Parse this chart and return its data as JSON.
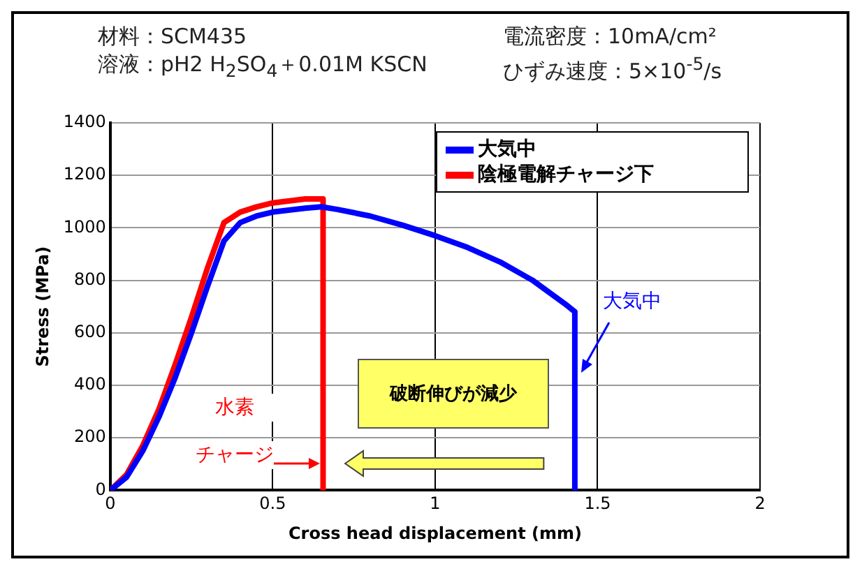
{
  "chart_data": {
    "type": "line",
    "xlabel": "Cross head displacement (mm)",
    "ylabel": "Stress (MPa)",
    "xlim": [
      0,
      2
    ],
    "xticks": [
      0,
      0.5,
      1,
      1.5,
      2
    ],
    "ylim": [
      0,
      1400
    ],
    "yticks": [
      0,
      200,
      400,
      600,
      800,
      1000,
      1200,
      1400
    ],
    "grid": true,
    "legend": "top right",
    "marker": "none",
    "line_style": "solid",
    "series": [
      {
        "name": "大気中",
        "color": "#0000ff",
        "x": [
          0,
          0.05,
          0.1,
          0.15,
          0.2,
          0.25,
          0.3,
          0.35,
          0.4,
          0.45,
          0.5,
          0.6,
          0.65,
          0.7,
          0.8,
          0.9,
          1.0,
          1.1,
          1.2,
          1.3,
          1.4,
          1.43,
          1.43
        ],
        "values": [
          0,
          50,
          150,
          280,
          430,
          600,
          780,
          950,
          1020,
          1045,
          1060,
          1075,
          1080,
          1070,
          1045,
          1010,
          970,
          925,
          870,
          800,
          710,
          680,
          0
        ]
      },
      {
        "name": "陰極電解チャージ下",
        "color": "#ff0000",
        "x": [
          0,
          0.05,
          0.1,
          0.15,
          0.2,
          0.25,
          0.3,
          0.35,
          0.4,
          0.45,
          0.5,
          0.6,
          0.655,
          0.655
        ],
        "values": [
          0,
          60,
          170,
          310,
          480,
          660,
          850,
          1020,
          1060,
          1080,
          1095,
          1110,
          1110,
          0
        ]
      }
    ],
    "annotations": [
      "材料：SCM435",
      "電流密度：10mA/cm²",
      "溶液：pH2 H$_{2}$SO$_{4}$＋0.01M KSCN",
      "ひずみ速度：5×10$^{-5}$/s",
      "破断伸びが減少",
      "大気中",
      "水素",
      {
        "text": "チャージ",
        "x": 0.655,
        "y": 100
      }
    ]
  }
}
